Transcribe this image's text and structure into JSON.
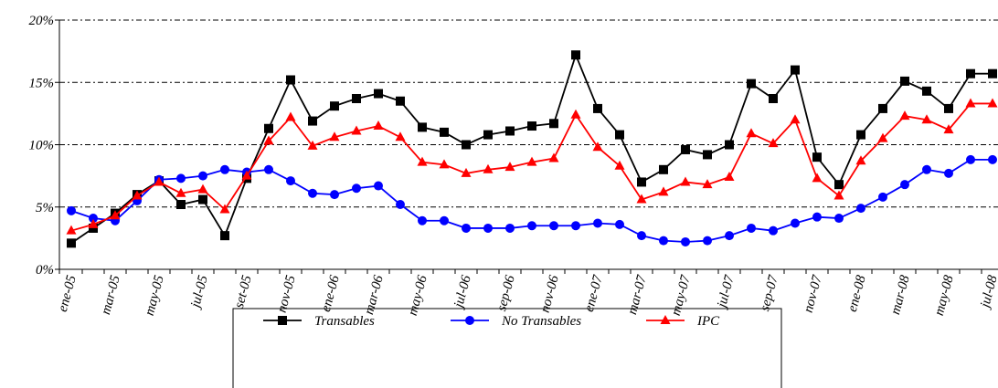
{
  "chart_data": {
    "type": "line",
    "categories": [
      "ene-05",
      null,
      "mar-05",
      null,
      "may-05",
      null,
      "jul-05",
      null,
      "set-05",
      null,
      "nov-05",
      null,
      "ene-06",
      null,
      "mar-06",
      null,
      "may-06",
      null,
      "jul-06",
      null,
      "sep-06",
      null,
      "nov-06",
      null,
      "ene-07",
      null,
      "mar-07",
      null,
      "may-07",
      null,
      "jul-07",
      null,
      "sep-07",
      null,
      "nov-07",
      null,
      "ene-08",
      null,
      "mar-08",
      null,
      "may-08",
      null,
      "jul-08"
    ],
    "series": [
      {
        "name": "Transables",
        "color": "#000000",
        "marker": "square",
        "values": [
          2.1,
          3.3,
          4.5,
          6.0,
          7.1,
          5.2,
          5.6,
          2.7,
          7.3,
          11.3,
          15.2,
          11.9,
          13.1,
          13.7,
          14.1,
          13.5,
          11.4,
          11.0,
          10.0,
          10.8,
          11.1,
          11.5,
          11.7,
          17.2,
          12.9,
          10.8,
          7.0,
          8.0,
          9.6,
          9.2,
          10.0,
          14.9,
          13.7,
          16.0,
          9.0,
          6.8,
          10.8,
          12.9,
          15.1,
          14.3,
          12.9,
          15.7,
          15.7
        ]
      },
      {
        "name": "No Transables",
        "color": "#0000ff",
        "marker": "circle",
        "values": [
          4.7,
          4.1,
          3.9,
          5.5,
          7.2,
          7.3,
          7.5,
          8.0,
          7.8,
          8.0,
          7.1,
          6.1,
          6.0,
          6.5,
          6.7,
          5.2,
          3.9,
          3.9,
          3.3,
          3.3,
          3.3,
          3.5,
          3.5,
          3.5,
          3.7,
          3.6,
          2.7,
          2.3,
          2.2,
          2.3,
          2.7,
          3.3,
          3.1,
          3.7,
          4.2,
          4.1,
          4.9,
          5.8,
          6.8,
          8.0,
          7.7,
          8.8,
          8.8
        ]
      },
      {
        "name": "IPC",
        "color": "#ff0000",
        "marker": "triangle",
        "values": [
          3.1,
          3.6,
          4.3,
          5.9,
          7.0,
          6.1,
          6.4,
          4.8,
          7.5,
          10.3,
          12.2,
          9.9,
          10.6,
          11.1,
          11.5,
          10.6,
          8.6,
          8.4,
          7.7,
          8.0,
          8.2,
          8.6,
          8.9,
          12.4,
          9.8,
          8.3,
          5.6,
          6.2,
          7.0,
          6.8,
          7.4,
          10.9,
          10.1,
          12.0,
          7.3,
          5.9,
          8.7,
          10.5,
          12.3,
          12.0,
          11.2,
          13.3,
          13.3
        ]
      }
    ],
    "ylim": [
      0,
      20
    ],
    "yticks": [
      {
        "value": 0,
        "label": "0%"
      },
      {
        "value": 5,
        "label": "5%"
      },
      {
        "value": 10,
        "label": "10%"
      },
      {
        "value": 15,
        "label": "15%"
      },
      {
        "value": 20,
        "label": "20%"
      }
    ],
    "grid": true,
    "legend": "bottom"
  }
}
